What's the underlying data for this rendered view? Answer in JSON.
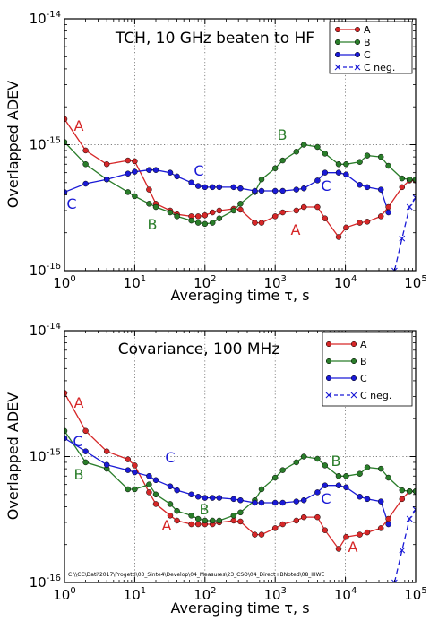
{
  "chart_data": [
    {
      "type": "line",
      "title": "TCH, 10 GHz beaten to HF",
      "xlabel": "Averaging time τ, s",
      "ylabel": "Overlapped ADEV",
      "xscale": "log",
      "yscale": "log",
      "xlim": [
        1,
        100000
      ],
      "ylim": [
        1e-16,
        1e-14
      ],
      "grid": "dotted, major",
      "legend_position": "top-right",
      "x_ticks": [
        {
          "value": 1,
          "base": "10",
          "exp": "0"
        },
        {
          "value": 10,
          "base": "10",
          "exp": "1"
        },
        {
          "value": 100,
          "base": "10",
          "exp": "2"
        },
        {
          "value": 1000,
          "base": "10",
          "exp": "3"
        },
        {
          "value": 10000,
          "base": "10",
          "exp": "4"
        },
        {
          "value": 100000,
          "base": "10",
          "exp": "5"
        }
      ],
      "y_ticks": [
        {
          "value": 1e-16,
          "base": "10",
          "exp": "-16"
        },
        {
          "value": 1e-15,
          "base": "10",
          "exp": "-15"
        },
        {
          "value": 1e-14,
          "base": "10",
          "exp": "-14"
        }
      ],
      "series": [
        {
          "name": "A",
          "color": "#d62728",
          "marker": "circle",
          "style": "solid",
          "x": [
            1,
            2,
            4,
            8,
            10,
            16,
            20,
            32,
            40,
            64,
            80,
            100,
            128,
            160,
            256,
            320,
            512,
            640,
            1000,
            1280,
            2000,
            2560,
            4000,
            5120,
            8000,
            10240,
            16000,
            20480,
            32000,
            40960,
            64000,
            81920,
            100000
          ],
          "y": [
            1.6e-15,
            9e-16,
            7e-16,
            7.5e-16,
            7.4e-16,
            4.4e-16,
            3.4e-16,
            3e-16,
            2.8e-16,
            2.7e-16,
            2.7e-16,
            2.75e-16,
            2.9e-16,
            3e-16,
            3.1e-16,
            3.05e-16,
            2.4e-16,
            2.4e-16,
            2.7e-16,
            2.9e-16,
            3e-16,
            3.2e-16,
            3.2e-16,
            2.6e-16,
            1.85e-16,
            2.2e-16,
            2.4e-16,
            2.45e-16,
            2.7e-16,
            3.2e-16,
            4.6e-16,
            5.2e-16,
            5.2e-16
          ]
        },
        {
          "name": "B",
          "color": "#2a7d2a",
          "marker": "circle",
          "style": "solid",
          "x": [
            1,
            2,
            4,
            8,
            10,
            16,
            20,
            32,
            40,
            64,
            80,
            100,
            128,
            160,
            256,
            320,
            512,
            640,
            1000,
            1280,
            2000,
            2560,
            4000,
            5120,
            8000,
            10240,
            16000,
            20480,
            32000,
            40960,
            64000,
            81920,
            100000
          ],
          "y": [
            1.05e-15,
            7e-16,
            5.3e-16,
            4.2e-16,
            3.9e-16,
            3.4e-16,
            3.2e-16,
            2.9e-16,
            2.7e-16,
            2.5e-16,
            2.4e-16,
            2.35e-16,
            2.4e-16,
            2.6e-16,
            3e-16,
            3.4e-16,
            4.2e-16,
            5.3e-16,
            6.5e-16,
            7.5e-16,
            8.8e-16,
            1e-15,
            9.6e-16,
            8.5e-16,
            7e-16,
            7e-16,
            7.3e-16,
            8.2e-16,
            8e-16,
            6.8e-16,
            5.4e-16,
            5.3e-16,
            5.3e-16
          ]
        },
        {
          "name": "C",
          "color": "#1a1ad6",
          "marker": "circle",
          "style": "solid",
          "x": [
            1,
            2,
            4,
            8,
            10,
            16,
            20,
            32,
            40,
            64,
            80,
            100,
            128,
            160,
            256,
            320,
            512,
            640,
            1000,
            1280,
            2000,
            2560,
            4000,
            5120,
            8000,
            10240,
            16000,
            20480,
            32000,
            40960
          ],
          "y": [
            4.2e-16,
            4.9e-16,
            5.3e-16,
            5.9e-16,
            6.1e-16,
            6.3e-16,
            6.3e-16,
            6e-16,
            5.6e-16,
            5e-16,
            4.7e-16,
            4.6e-16,
            4.6e-16,
            4.6e-16,
            4.6e-16,
            4.5e-16,
            4.3e-16,
            4.3e-16,
            4.3e-16,
            4.3e-16,
            4.4e-16,
            4.5e-16,
            5.2e-16,
            6e-16,
            6e-16,
            5.8e-16,
            4.8e-16,
            4.6e-16,
            4.4e-16,
            2.9e-16
          ]
        },
        {
          "name": "C neg.",
          "color": "#1a1ad6",
          "marker": "x",
          "style": "dashed",
          "x": [
            50000,
            64000,
            81920,
            100000
          ],
          "y": [
            1e-16,
            1.8e-16,
            3.2e-16,
            3.8e-16
          ]
        }
      ],
      "annotations": [
        {
          "text": "A",
          "series": "A",
          "x": 2,
          "y": 1.35e-15
        },
        {
          "text": "B",
          "series": "B",
          "x": 1500,
          "y": 1.25e-15
        },
        {
          "text": "C",
          "series": "C",
          "x": 100,
          "y": 6.3e-16
        },
        {
          "text": "C",
          "series": "C",
          "x": 1.5,
          "y": 3.4e-16
        },
        {
          "text": "B",
          "series": "B",
          "x": 25,
          "y": 2.35e-16
        },
        {
          "text": "C",
          "series": "C",
          "x": 5500,
          "y": 4.5e-16
        },
        {
          "text": "A",
          "series": "A",
          "x": 3000,
          "y": 2.05e-16
        }
      ]
    },
    {
      "type": "line",
      "title": "Covariance, 100 MHz",
      "xlabel": "Averaging time τ, s",
      "ylabel": "Overlapped ADEV",
      "xscale": "log",
      "yscale": "log",
      "xlim": [
        1,
        100000
      ],
      "ylim": [
        1e-16,
        1e-14
      ],
      "grid": "dotted, major",
      "legend_position": "top-right",
      "footer": "C:\\\\CC\\Dati\\2017\\Progetti\\03_Sinte4\\Develop\\04_Measures\\23_CSO\\04_Direct+BNoted\\08_IIIWE",
      "x_ticks": [
        {
          "value": 1,
          "base": "10",
          "exp": "0"
        },
        {
          "value": 10,
          "base": "10",
          "exp": "1"
        },
        {
          "value": 100,
          "base": "10",
          "exp": "2"
        },
        {
          "value": 1000,
          "base": "10",
          "exp": "3"
        },
        {
          "value": 10000,
          "base": "10",
          "exp": "4"
        },
        {
          "value": 100000,
          "base": "10",
          "exp": "5"
        }
      ],
      "y_ticks": [
        {
          "value": 1e-16,
          "base": "10",
          "exp": "-16"
        },
        {
          "value": 1e-15,
          "base": "10",
          "exp": "-15"
        },
        {
          "value": 1e-14,
          "base": "10",
          "exp": "-14"
        }
      ],
      "series": [
        {
          "name": "A",
          "color": "#d62728",
          "marker": "circle",
          "style": "solid",
          "x": [
            1,
            2,
            4,
            8,
            10,
            16,
            20,
            32,
            40,
            64,
            80,
            100,
            128,
            160,
            256,
            320,
            512,
            640,
            1000,
            1280,
            2000,
            2560,
            4000,
            5120,
            8000,
            10240,
            16000,
            20480,
            32000,
            40960,
            64000,
            81920,
            100000
          ],
          "y": [
            3.2e-15,
            1.6e-15,
            1.1e-15,
            9.5e-16,
            8.5e-16,
            5.2e-16,
            4.2e-16,
            3.4e-16,
            3.1e-16,
            2.9e-16,
            2.9e-16,
            2.9e-16,
            2.9e-16,
            3e-16,
            3.1e-16,
            3.05e-16,
            2.4e-16,
            2.4e-16,
            2.7e-16,
            2.9e-16,
            3.1e-16,
            3.3e-16,
            3.3e-16,
            2.6e-16,
            1.85e-16,
            2.3e-16,
            2.4e-16,
            2.5e-16,
            2.7e-16,
            3.2e-16,
            4.6e-16,
            5.3e-16,
            5.3e-16
          ]
        },
        {
          "name": "B",
          "color": "#2a7d2a",
          "marker": "circle",
          "style": "solid",
          "x": [
            1,
            2,
            4,
            8,
            10,
            16,
            20,
            32,
            40,
            64,
            80,
            100,
            128,
            160,
            256,
            320,
            512,
            640,
            1000,
            1280,
            2000,
            2560,
            4000,
            5120,
            8000,
            10240,
            16000,
            20480,
            32000,
            40960,
            64000,
            81920,
            100000
          ],
          "y": [
            1.6e-15,
            9e-16,
            8e-16,
            5.5e-16,
            5.5e-16,
            6e-16,
            5e-16,
            4.2e-16,
            3.7e-16,
            3.4e-16,
            3.2e-16,
            3.1e-16,
            3.1e-16,
            3.1e-16,
            3.4e-16,
            3.6e-16,
            4.5e-16,
            5.5e-16,
            6.8e-16,
            7.8e-16,
            9e-16,
            1e-15,
            9.6e-16,
            8.5e-16,
            7e-16,
            7e-16,
            7.3e-16,
            8.2e-16,
            8e-16,
            6.8e-16,
            5.4e-16,
            5.3e-16,
            5.3e-16
          ]
        },
        {
          "name": "C",
          "color": "#1a1ad6",
          "marker": "circle",
          "style": "solid",
          "x": [
            1,
            2,
            4,
            8,
            10,
            16,
            20,
            32,
            40,
            64,
            80,
            100,
            128,
            160,
            256,
            320,
            512,
            640,
            1000,
            1280,
            2000,
            2560,
            4000,
            5120,
            8000,
            10240,
            16000,
            20480,
            32000,
            40960
          ],
          "y": [
            1.4e-15,
            1.1e-15,
            8.6e-16,
            7.8e-16,
            7.5e-16,
            7e-16,
            6.5e-16,
            5.8e-16,
            5.4e-16,
            5e-16,
            4.8e-16,
            4.7e-16,
            4.7e-16,
            4.7e-16,
            4.6e-16,
            4.5e-16,
            4.3e-16,
            4.3e-16,
            4.3e-16,
            4.3e-16,
            4.4e-16,
            4.5e-16,
            5.2e-16,
            5.9e-16,
            5.9e-16,
            5.7e-16,
            4.8e-16,
            4.6e-16,
            4.4e-16,
            2.9e-16
          ]
        },
        {
          "name": "C neg.",
          "color": "#1a1ad6",
          "marker": "x",
          "style": "dashed",
          "x": [
            50000,
            64000,
            81920,
            100000
          ],
          "y": [
            1e-16,
            1.8e-16,
            3.2e-16,
            3.8e-16
          ]
        }
      ],
      "annotations": [
        {
          "text": "A",
          "series": "A",
          "x": 2,
          "y": 2.4e-15
        },
        {
          "text": "C",
          "series": "C",
          "x": 1.6,
          "y": 1.35e-15
        },
        {
          "text": "B",
          "series": "B",
          "x": 2,
          "y": 7.4e-16
        },
        {
          "text": "C",
          "series": "C",
          "x": 170,
          "y": 5.2e-16
        },
        {
          "text": "B",
          "series": "B",
          "x": 100,
          "y": 3.25e-16
        },
        {
          "text": "A",
          "series": "A",
          "x": 40,
          "y": 2.35e-16
        },
        {
          "text": "B",
          "series": "B",
          "x": 1800,
          "y": 7.4e-16
        },
        {
          "text": "C",
          "series": "C",
          "x": 5500,
          "y": 4.5e-16
        },
        {
          "text": "A",
          "series": "A",
          "x": 9000,
          "y": 1.65e-16
        }
      ]
    }
  ]
}
